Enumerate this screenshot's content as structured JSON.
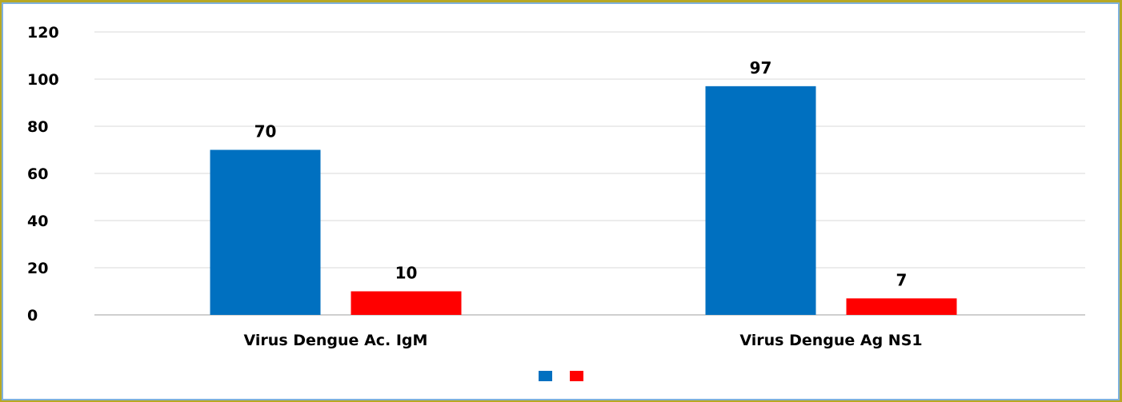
{
  "chart_data": {
    "type": "bar",
    "title": "",
    "xlabel": "",
    "ylabel": "",
    "categories": [
      "Virus Dengue Ac. IgM",
      "Virus Dengue Ag NS1"
    ],
    "series": [
      {
        "color": "#0070c0",
        "values": [
          70,
          97
        ]
      },
      {
        "color": "#ff0000",
        "values": [
          10,
          7
        ]
      }
    ],
    "ylim": [
      0,
      120
    ],
    "yticks": [
      0,
      20,
      40,
      60,
      80,
      100,
      120
    ],
    "grid": true,
    "legend_position": "bottom",
    "data_labels": true
  },
  "colors": {
    "gridline": "#d9d9d9",
    "axis": "#bfbfbf",
    "panel_border": "#7fb1dc",
    "outer_frame": "#b8a823"
  }
}
